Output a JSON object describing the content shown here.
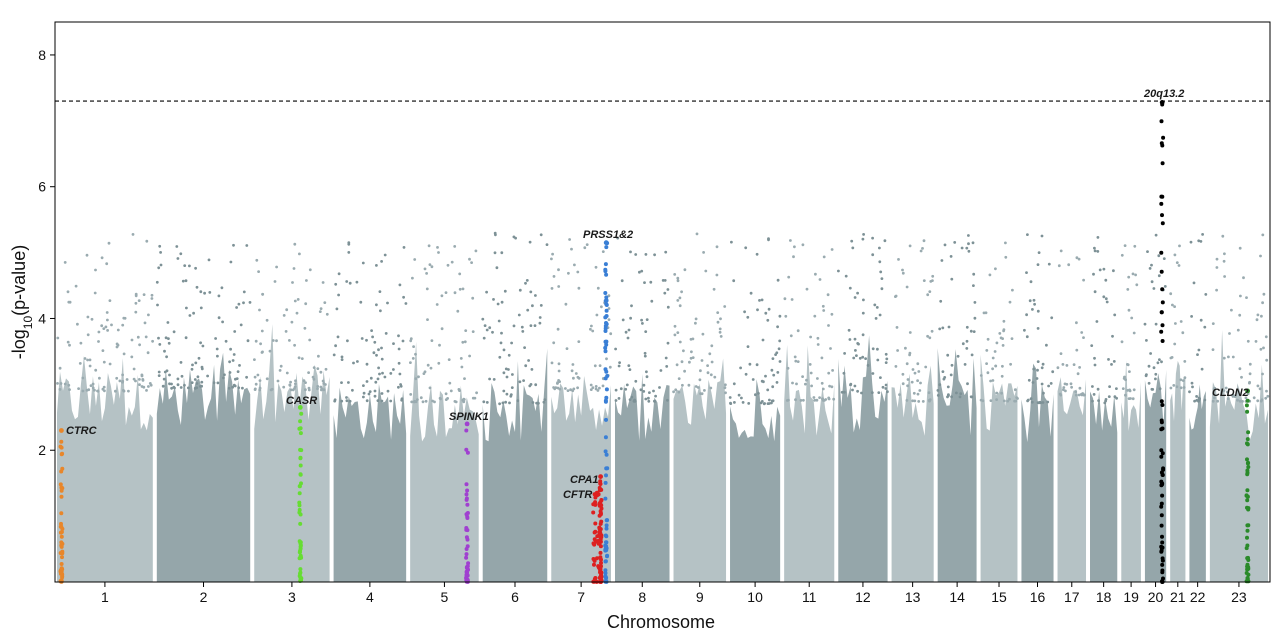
{
  "chart_data": {
    "type": "scatter",
    "subtype": "manhattan",
    "xlabel": "Chromosome",
    "ylabel_base": "-log",
    "ylabel_sub": "10",
    "ylabel_tail": "(p-value)",
    "ylim": [
      0,
      8.5
    ],
    "yticks": [
      2,
      4,
      6,
      8
    ],
    "significance_threshold": 7.3,
    "chromosomes": [
      {
        "label": "1",
        "start": 0,
        "length": 249,
        "color": "#b5c2c5"
      },
      {
        "label": "2",
        "start": 249,
        "length": 243,
        "color": "#95a6aa"
      },
      {
        "label": "3",
        "start": 492,
        "length": 198,
        "color": "#b5c2c5"
      },
      {
        "label": "4",
        "start": 690,
        "length": 191,
        "color": "#95a6aa"
      },
      {
        "label": "5",
        "start": 881,
        "length": 181,
        "color": "#b5c2c5"
      },
      {
        "label": "6",
        "start": 1062,
        "length": 171,
        "color": "#95a6aa"
      },
      {
        "label": "7",
        "start": 1233,
        "length": 159,
        "color": "#b5c2c5"
      },
      {
        "label": "8",
        "start": 1392,
        "length": 146,
        "color": "#95a6aa"
      },
      {
        "label": "9",
        "start": 1538,
        "length": 141,
        "color": "#b5c2c5"
      },
      {
        "label": "10",
        "start": 1679,
        "length": 135,
        "color": "#95a6aa"
      },
      {
        "label": "11",
        "start": 1814,
        "length": 135,
        "color": "#b5c2c5"
      },
      {
        "label": "12",
        "start": 1949,
        "length": 133,
        "color": "#95a6aa"
      },
      {
        "label": "13",
        "start": 2082,
        "length": 115,
        "color": "#b5c2c5"
      },
      {
        "label": "14",
        "start": 2197,
        "length": 107,
        "color": "#95a6aa"
      },
      {
        "label": "15",
        "start": 2304,
        "length": 102,
        "color": "#b5c2c5"
      },
      {
        "label": "16",
        "start": 2406,
        "length": 90,
        "color": "#95a6aa"
      },
      {
        "label": "17",
        "start": 2496,
        "length": 81,
        "color": "#b5c2c5"
      },
      {
        "label": "18",
        "start": 2577,
        "length": 78,
        "color": "#95a6aa"
      },
      {
        "label": "19",
        "start": 2655,
        "length": 59,
        "color": "#b5c2c5"
      },
      {
        "label": "20",
        "start": 2714,
        "length": 63,
        "color": "#95a6aa"
      },
      {
        "label": "21",
        "start": 2777,
        "length": 48,
        "color": "#b5c2c5"
      },
      {
        "label": "22",
        "start": 2825,
        "length": 51,
        "color": "#95a6aa"
      },
      {
        "label": "23",
        "start": 2876,
        "length": 155,
        "color": "#b5c2c5"
      }
    ],
    "background_peak_max": 5.3,
    "highlighted_loci": [
      {
        "gene": "CTRC",
        "position": 16,
        "max": 2.3,
        "color": "#e8862a"
      },
      {
        "gene": "CASR",
        "position": 612,
        "max": 2.65,
        "color": "#66dd33"
      },
      {
        "gene": "SPINK1",
        "position": 1028,
        "max": 2.4,
        "color": "#a040d0"
      },
      {
        "gene": "CFTR",
        "position": 1352,
        "max": 1.35,
        "color": "#dd2020"
      },
      {
        "gene": "CPA1",
        "position": 1361,
        "max": 1.6,
        "color": "#dd2020"
      },
      {
        "gene": "PRSS1&2",
        "position": 1375,
        "max": 5.15,
        "color": "#3a7fd5"
      },
      {
        "gene": "20q13.2",
        "position": 2762,
        "max": 7.28,
        "color": "#000000"
      },
      {
        "gene": "CLDN2",
        "position": 2975,
        "max": 2.9,
        "color": "#2a8a2a"
      }
    ]
  },
  "labels": {
    "gene_ctrc": "CTRC",
    "gene_casr": "CASR",
    "gene_spink1": "SPINK1",
    "gene_cfp1": "CPA1",
    "gene_cftr": "CFTR",
    "gene_prss": "PRSS1&2",
    "gene_20q": "20q13.2",
    "gene_cldn2": "CLDN2"
  }
}
